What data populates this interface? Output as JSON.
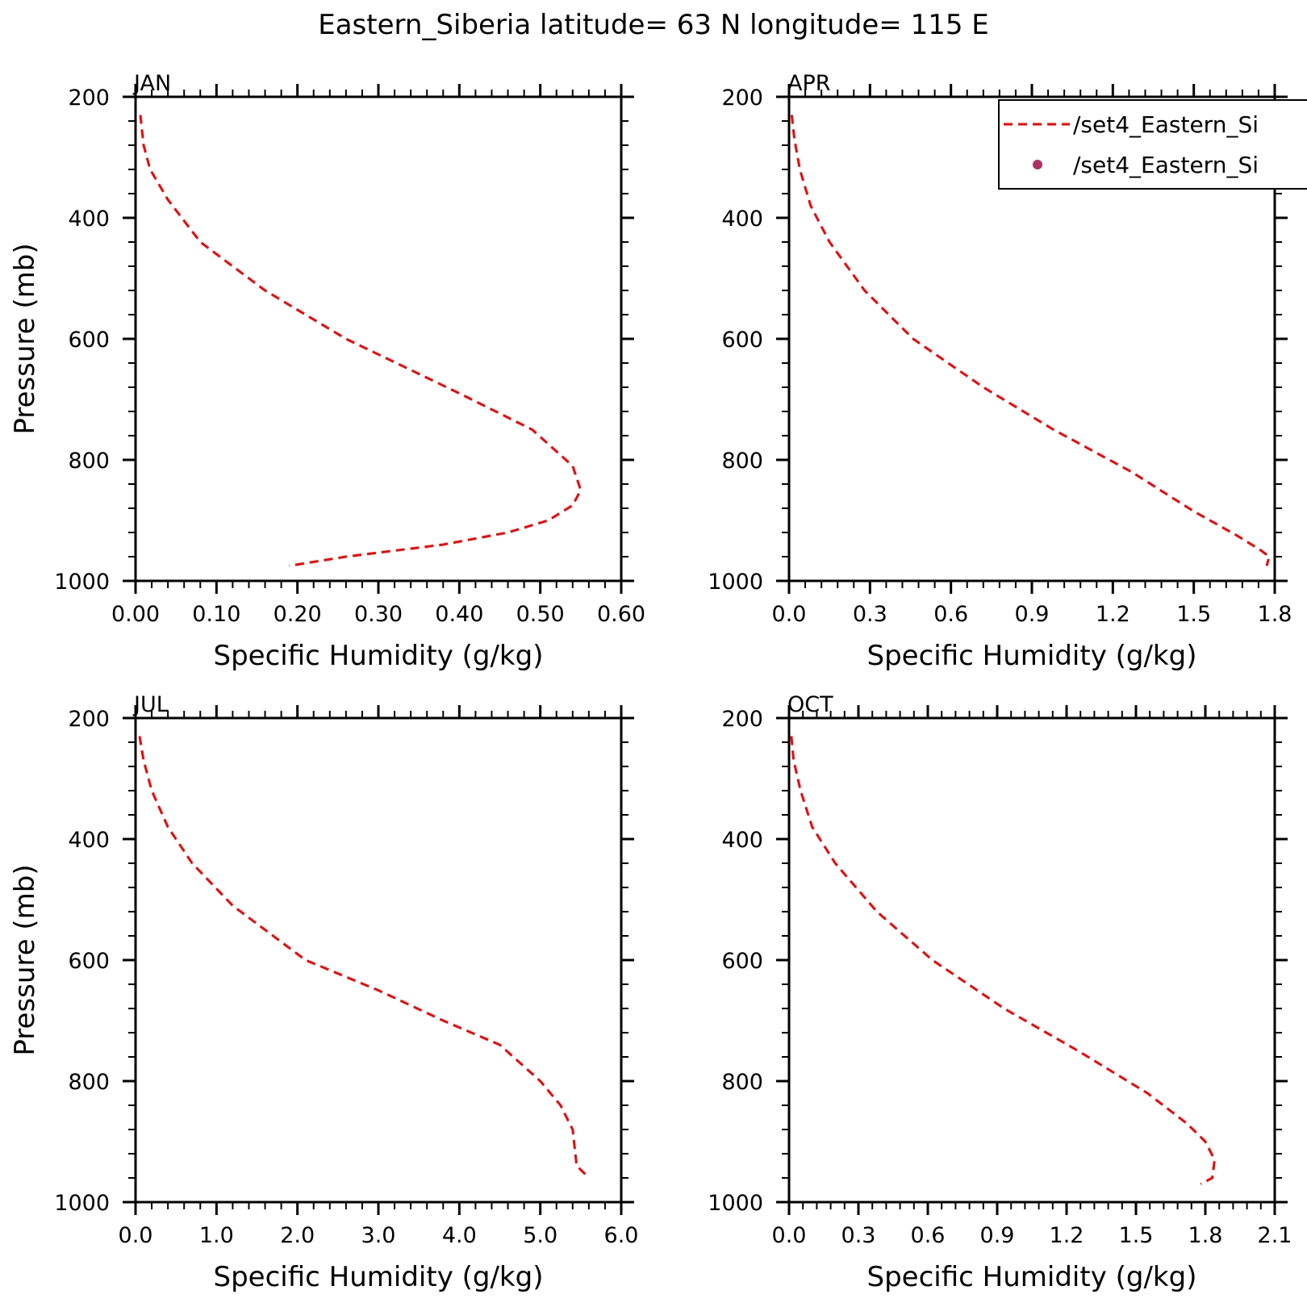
{
  "figure": {
    "title": "Eastern_Siberia  latitude= 63 N longitude= 115 E"
  },
  "legend": {
    "entries": [
      {
        "label": "/set4_Eastern_Si",
        "style": "dashed-line",
        "color": "#ff0000"
      },
      {
        "label": "/set4_Eastern_Si",
        "style": "dot",
        "color": "#b03060"
      }
    ]
  },
  "chart_data": [
    {
      "type": "line",
      "title": "JAN",
      "xlabel": "Specific Humidity (g/kg)",
      "ylabel": "Pressure (mb)",
      "xlim": [
        0,
        0.6
      ],
      "ylim": [
        1000,
        200
      ],
      "y_inverted": true,
      "xticks": [
        "0.00",
        "0.10",
        "0.20",
        "0.30",
        "0.40",
        "0.50",
        "0.60"
      ],
      "yticks": [
        "200",
        "400",
        "600",
        "800",
        "1000"
      ],
      "series": [
        {
          "color": "#ff0000",
          "style": "dashed",
          "x": [
            0.006,
            0.01,
            0.018,
            0.04,
            0.08,
            0.16,
            0.26,
            0.4,
            0.49,
            0.54,
            0.55,
            0.54,
            0.51,
            0.46,
            0.38,
            0.26,
            0.19
          ],
          "y": [
            230,
            280,
            320,
            370,
            440,
            520,
            600,
            690,
            750,
            810,
            850,
            875,
            900,
            920,
            940,
            960,
            975
          ]
        }
      ]
    },
    {
      "type": "line",
      "title": "APR",
      "xlabel": "Specific Humidity (g/kg)",
      "ylabel": "",
      "xlim": [
        0,
        1.8
      ],
      "ylim": [
        1000,
        200
      ],
      "y_inverted": true,
      "xticks": [
        "0.0",
        "0.3",
        "0.6",
        "0.9",
        "1.2",
        "1.5",
        "1.8"
      ],
      "yticks": [
        "200",
        "400",
        "600",
        "800",
        "1000"
      ],
      "series": [
        {
          "color": "#ff0000",
          "style": "dashed",
          "x": [
            0.01,
            0.02,
            0.04,
            0.08,
            0.15,
            0.28,
            0.46,
            0.72,
            0.98,
            1.27,
            1.5,
            1.66,
            1.75,
            1.78,
            1.77
          ],
          "y": [
            230,
            270,
            320,
            380,
            440,
            520,
            600,
            680,
            750,
            820,
            885,
            925,
            950,
            960,
            975
          ]
        }
      ]
    },
    {
      "type": "line",
      "title": "JUL",
      "xlabel": "Specific Humidity (g/kg)",
      "ylabel": "Pressure (mb)",
      "xlim": [
        0,
        6.0
      ],
      "ylim": [
        1000,
        200
      ],
      "y_inverted": true,
      "xticks": [
        "0.0",
        "1.0",
        "2.0",
        "3.0",
        "4.0",
        "5.0",
        "6.0"
      ],
      "yticks": [
        "200",
        "400",
        "600",
        "800",
        "1000"
      ],
      "series": [
        {
          "color": "#ff0000",
          "style": "dashed",
          "x": [
            0.05,
            0.1,
            0.2,
            0.4,
            0.7,
            1.2,
            2.1,
            3.0,
            3.8,
            4.5,
            5.0,
            5.25,
            5.4,
            5.45,
            5.6
          ],
          "y": [
            230,
            270,
            320,
            380,
            440,
            510,
            600,
            650,
            700,
            740,
            800,
            840,
            880,
            940,
            960
          ]
        }
      ]
    },
    {
      "type": "line",
      "title": "OCT",
      "xlabel": "Specific Humidity (g/kg)",
      "ylabel": "",
      "xlim": [
        0,
        2.1
      ],
      "ylim": [
        1000,
        200
      ],
      "y_inverted": true,
      "xticks": [
        "0.0",
        "0.3",
        "0.6",
        "0.9",
        "1.2",
        "1.5",
        "1.8",
        "2.1"
      ],
      "yticks": [
        "200",
        "400",
        "600",
        "800",
        "1000"
      ],
      "series": [
        {
          "color": "#ff0000",
          "style": "dashed",
          "x": [
            0.01,
            0.02,
            0.05,
            0.1,
            0.2,
            0.38,
            0.62,
            0.93,
            1.25,
            1.55,
            1.72,
            1.8,
            1.84,
            1.83,
            1.78
          ],
          "y": [
            230,
            270,
            320,
            380,
            440,
            520,
            600,
            680,
            750,
            820,
            870,
            900,
            930,
            960,
            970
          ]
        }
      ]
    }
  ]
}
